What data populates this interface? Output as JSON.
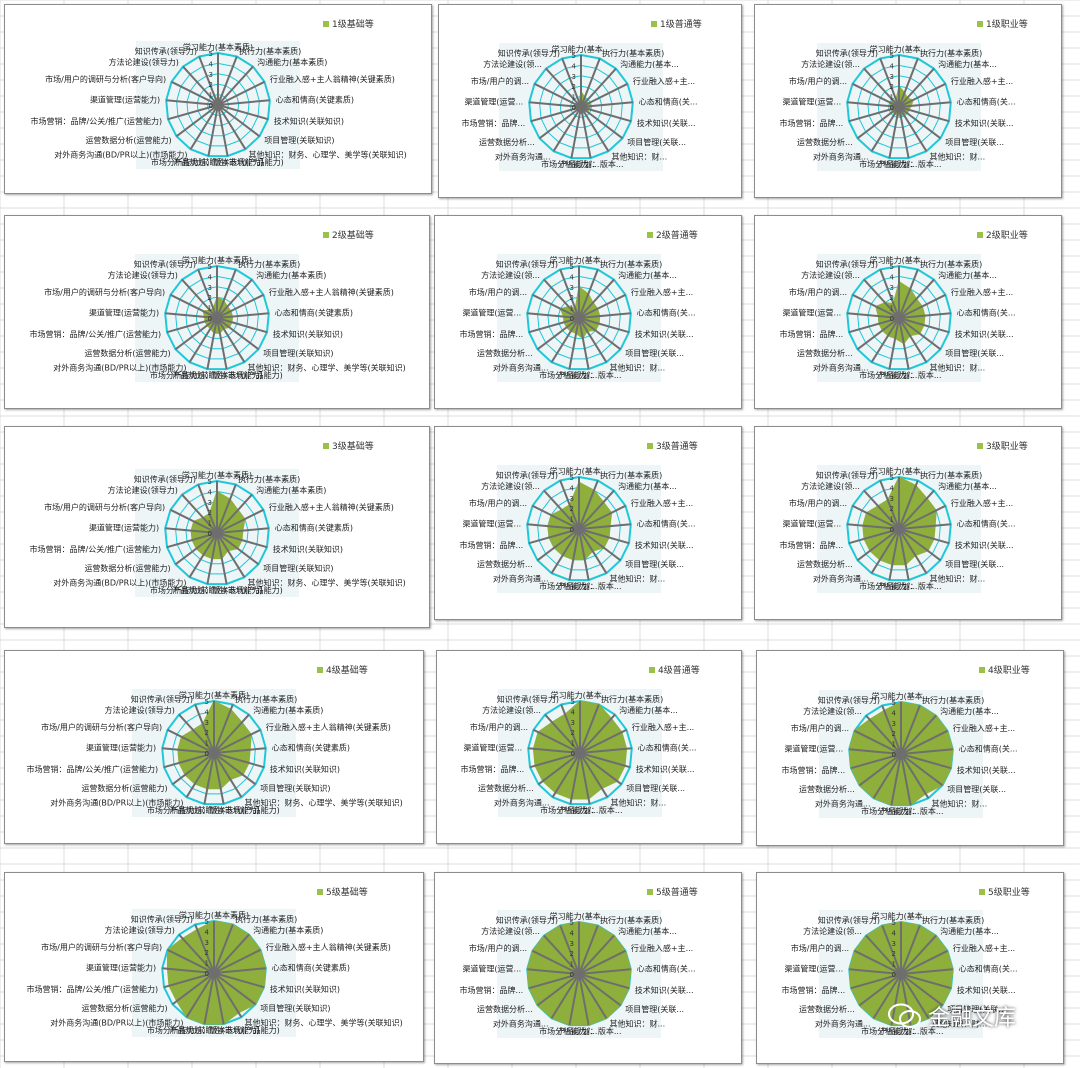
{
  "colors": {
    "fill": "#8faf3c",
    "ring": "#1ec8d8",
    "spoke": "#6e6e6e",
    "legend": "#9ac24a",
    "cell": "#dcdcdc"
  },
  "axes_full": [
    "学习能力(基本素质)",
    "执行力(基本素质)",
    "沟通能力(基本素质)",
    "行业融入感+主人翁精神(关键素质)",
    "心态和情商(关键素质)",
    "技术知识(关联知识)",
    "项目管理(关联知识)",
    "其他知识：财务、心理学、美学等(关联知识)",
    "产品规划：版本迭代(产品能力)",
    "市场分析能力/前瞻性(市场能力)",
    "对外商务沟通(BD/PR以上)(市场能力)",
    "运营数据分析(运营能力)",
    "市场营销：品牌/公关/推广(运营能力)",
    "渠道管理(运营能力)",
    "市场/用户的调研与分析(客户导向)",
    "方法论建设(领导力)",
    "知识传承(领导力)"
  ],
  "axes_short": [
    "学习能力(基本...",
    "执行力(基本素质)",
    "沟通能力(基本...",
    "行业融入感+主...",
    "心态和情商(关...",
    "技术知识(关联...",
    "项目管理(关联...",
    "其他知识：财...",
    "产品规划：版本...",
    "市场分析能力/...",
    "对外商务沟通...",
    "运营数据分析...",
    "市场营销：品牌...",
    "渠道管理(运营...",
    "市场/用户的调...",
    "方法论建设(领...",
    "知识传承(领导力)"
  ],
  "ticks": [
    "0",
    "1",
    "2",
    "3",
    "4",
    "5"
  ],
  "watermark": "金融文库",
  "chart_data": [
    {
      "type": "radar",
      "title": "",
      "legend": "1级基础等",
      "max": 5,
      "values": [
        1,
        0.5,
        0.5,
        0.5,
        0.5,
        0.5,
        0.5,
        0.5,
        0.5,
        0.5,
        0.5,
        0.5,
        0.5,
        0.5,
        0.5,
        0.5,
        0.5
      ]
    },
    {
      "type": "radar",
      "title": "",
      "legend": "1级普通等",
      "max": 5,
      "values": [
        1.5,
        1,
        0.8,
        0.8,
        1,
        0.8,
        0.8,
        0.5,
        0.8,
        0.5,
        0.5,
        0.5,
        0.5,
        0.5,
        0.8,
        0.5,
        0.5
      ]
    },
    {
      "type": "radar",
      "title": "",
      "legend": "1级职业等",
      "max": 5,
      "values": [
        2,
        1.5,
        1.2,
        1.5,
        1.2,
        1,
        1,
        0.8,
        1,
        0.8,
        0.8,
        0.8,
        0.8,
        0.8,
        1,
        0.8,
        0.8
      ]
    },
    {
      "type": "radar",
      "title": "",
      "legend": "2级基础等",
      "max": 5,
      "values": [
        2,
        1.8,
        1.5,
        1.5,
        1.5,
        1.5,
        1.5,
        1.2,
        1.5,
        1.5,
        1.2,
        1.2,
        1.2,
        1.2,
        1.5,
        1,
        1
      ]
    },
    {
      "type": "radar",
      "title": "",
      "legend": "2级普通等",
      "max": 5,
      "values": [
        3,
        2.5,
        2,
        2,
        2,
        2,
        2,
        1.5,
        2,
        1.5,
        1.5,
        1.5,
        1.5,
        1.5,
        2,
        1.5,
        1
      ]
    },
    {
      "type": "radar",
      "title": "",
      "legend": "2级职业等",
      "max": 5,
      "values": [
        3.5,
        3,
        2.5,
        2.5,
        2.5,
        2.5,
        2.5,
        2,
        2.5,
        2,
        2,
        2,
        2,
        2,
        2.5,
        2,
        1.5
      ]
    },
    {
      "type": "radar",
      "title": "",
      "legend": "3级基础等",
      "max": 5,
      "values": [
        4,
        3.5,
        3,
        3,
        2.5,
        2.5,
        2.5,
        2,
        2.5,
        2.5,
        2.5,
        2.5,
        2.5,
        2.5,
        2.5,
        2,
        2
      ]
    },
    {
      "type": "radar",
      "title": "",
      "legend": "3级普通等",
      "max": 5,
      "values": [
        4.5,
        4,
        3.5,
        3.5,
        3,
        3,
        3,
        2.5,
        3,
        3,
        3,
        3,
        3,
        3,
        3,
        2.5,
        2.5
      ]
    },
    {
      "type": "radar",
      "title": "",
      "legend": "3级职业等",
      "max": 5,
      "values": [
        5,
        4.5,
        4,
        4,
        3.5,
        3.5,
        3.5,
        3,
        3.5,
        3.5,
        3.5,
        3.5,
        3.5,
        3.5,
        3.5,
        3,
        3
      ]
    },
    {
      "type": "radar",
      "title": "",
      "legend": "4级基础等",
      "max": 5,
      "values": [
        5,
        4.5,
        4,
        4,
        3.5,
        3.5,
        3.5,
        3,
        3.5,
        3.5,
        3.5,
        3.5,
        3.5,
        3.5,
        3.5,
        3,
        3
      ]
    },
    {
      "type": "radar",
      "title": "",
      "legend": "4级普通等",
      "max": 5,
      "values": [
        5,
        5,
        4.5,
        4.5,
        4.5,
        4.5,
        4.5,
        4,
        4.5,
        4.5,
        4.5,
        4.5,
        4.5,
        4.5,
        4.5,
        4,
        4
      ]
    },
    {
      "type": "radar",
      "title": "",
      "legend": "4级职业等",
      "max": 5,
      "values": [
        5,
        5,
        5,
        5,
        5,
        5,
        5,
        4.5,
        5,
        5,
        5,
        5,
        5,
        5,
        5,
        4.5,
        4.5
      ]
    },
    {
      "type": "radar",
      "title": "",
      "legend": "5级基础等",
      "max": 5,
      "values": [
        5,
        5,
        5,
        5,
        5,
        5,
        5,
        4.5,
        5,
        5,
        5,
        4.5,
        4.5,
        4.5,
        5,
        4.5,
        4.5
      ]
    },
    {
      "type": "radar",
      "title": "",
      "legend": "5级普通等",
      "max": 5,
      "values": [
        5,
        5,
        5,
        5,
        5,
        5,
        5,
        5,
        5,
        5,
        5,
        5,
        5,
        5,
        5,
        5,
        5
      ]
    },
    {
      "type": "radar",
      "title": "",
      "legend": "5级职业等",
      "max": 5,
      "values": [
        5,
        5,
        5,
        5,
        5,
        5,
        5,
        5,
        5,
        5,
        5,
        5,
        5,
        5,
        5,
        5,
        5
      ]
    }
  ]
}
